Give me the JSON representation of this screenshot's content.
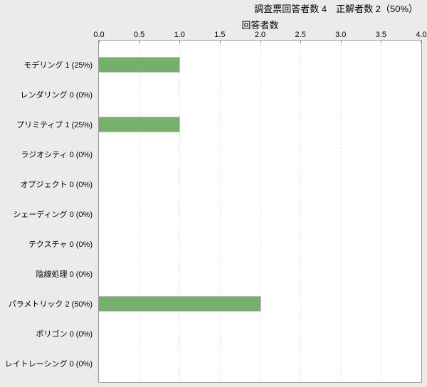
{
  "title": "調査票回答者数 4　正解者数 2（50%）",
  "chart_data": {
    "type": "bar",
    "orientation": "horizontal",
    "title": "調査票回答者数 4　正解者数 2（50%）",
    "xlabel": "回答者数",
    "ylabel": "",
    "xlim": [
      0.0,
      4.0
    ],
    "xticks": [
      0.0,
      0.5,
      1.0,
      1.5,
      2.0,
      2.5,
      3.0,
      3.5,
      4.0
    ],
    "xtick_labels": [
      "0.0",
      "0.5",
      "1.0",
      "1.5",
      "2.0",
      "2.5",
      "3.0",
      "3.5",
      "4.0"
    ],
    "grid": "vertical dashed gridlines at 0.5 intervals",
    "legend": "none",
    "axis_position": "x-axis on top",
    "categories": [
      "モデリング",
      "レンダリング",
      "プリミティブ",
      "ラジオシティ",
      "オブジェクト",
      "シェーディング",
      "テクスチャ",
      "陰線処理",
      "パラメトリック",
      "ポリゴン",
      "レイトレーシング"
    ],
    "values": [
      1,
      0,
      1,
      0,
      0,
      0,
      0,
      0,
      2,
      0,
      0
    ],
    "percentages": [
      "25%",
      "0%",
      "25%",
      "0%",
      "0%",
      "0%",
      "0%",
      "0%",
      "50%",
      "0%",
      "0%"
    ],
    "row_labels": [
      "モデリング 1 (25%)",
      "レンダリング 0 (0%)",
      "プリミティブ 1 (25%)",
      "ラジオシティ 0 (0%)",
      "オブジェクト 0 (0%)",
      "シェーディング 0 (0%)",
      "テクスチャ 0 (0%)",
      "陰線処理 0 (0%)",
      "パラメトリック 2 (50%)",
      "ポリゴン 0 (0%)",
      "レイトレーシング 0 (0%)"
    ]
  },
  "colors": {
    "background": "#ebebeb",
    "plot_background": "#ffffff",
    "axis_line": "#9a9a9a",
    "gridline": "#dcdcdc",
    "bar_fill": "#74b06a",
    "bar_border": "#c3c3c3",
    "text": "#000000"
  }
}
